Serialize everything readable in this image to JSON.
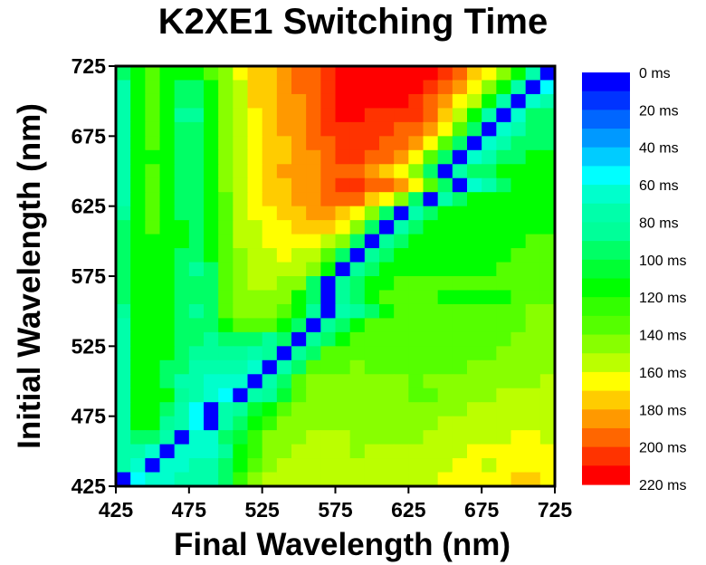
{
  "chart_data": {
    "type": "heatmap",
    "title": "K2XE1 Switching Time",
    "xlabel": "Final Wavelength (nm)",
    "ylabel": "Initial Wavelength (nm)",
    "xlim": [
      425,
      725
    ],
    "ylim": [
      425,
      725
    ],
    "x_ticks": [
      "425",
      "475",
      "525",
      "575",
      "625",
      "675",
      "725"
    ],
    "y_ticks": [
      "425",
      "475",
      "525",
      "575",
      "625",
      "675",
      "725"
    ],
    "x": [
      425,
      435,
      445,
      455,
      465,
      475,
      485,
      495,
      505,
      515,
      525,
      535,
      545,
      555,
      565,
      575,
      585,
      595,
      605,
      615,
      625,
      635,
      645,
      655,
      665,
      675,
      685,
      695,
      705,
      715,
      725
    ],
    "y_top_to_bottom": [
      725,
      715,
      705,
      695,
      685,
      675,
      665,
      655,
      645,
      635,
      625,
      615,
      605,
      595,
      585,
      575,
      565,
      555,
      545,
      535,
      525,
      515,
      505,
      495,
      485,
      475,
      465,
      455,
      445,
      435,
      425
    ],
    "value_unit": "ms",
    "colorbar": {
      "range": [
        0,
        220
      ],
      "step": 10,
      "labels": [
        "0 ms",
        "20 ms",
        "40 ms",
        "60 ms",
        "80 ms",
        "100 ms",
        "120 ms",
        "140 ms",
        "160 ms",
        "180 ms",
        "200 ms",
        "220 ms"
      ],
      "colors": [
        "#0000FF",
        "#0033FF",
        "#0066FF",
        "#0099FF",
        "#00CCFF",
        "#00FFFF",
        "#00FFCC",
        "#00FFAA",
        "#00FF99",
        "#00FF66",
        "#00FF33",
        "#00FF00",
        "#33FF00",
        "#55FF00",
        "#88FF00",
        "#BBFF00",
        "#FFFF00",
        "#FFCC00",
        "#FF9900",
        "#FF6600",
        "#FF3300",
        "#FF0000"
      ]
    },
    "values_ms": [
      [
        95,
        115,
        115,
        115,
        115,
        115,
        135,
        145,
        165,
        175,
        175,
        185,
        195,
        205,
        205,
        215,
        215,
        215,
        215,
        215,
        215,
        215,
        205,
        195,
        185,
        155,
        135,
        95,
        55,
        5,
        5
      ],
      [
        95,
        115,
        135,
        115,
        115,
        115,
        135,
        145,
        165,
        175,
        175,
        185,
        195,
        195,
        205,
        215,
        215,
        215,
        215,
        215,
        215,
        215,
        205,
        195,
        175,
        165,
        145,
        115,
        75,
        5,
        65
      ],
      [
        75,
        115,
        135,
        115,
        95,
        95,
        115,
        145,
        155,
        175,
        175,
        185,
        195,
        195,
        205,
        215,
        215,
        215,
        215,
        215,
        215,
        205,
        195,
        185,
        165,
        145,
        115,
        75,
        5,
        55,
        75
      ],
      [
        75,
        115,
        135,
        115,
        95,
        95,
        115,
        145,
        155,
        175,
        175,
        185,
        185,
        195,
        205,
        215,
        215,
        215,
        215,
        215,
        205,
        195,
        185,
        165,
        155,
        115,
        75,
        5,
        65,
        75,
        75
      ],
      [
        75,
        115,
        135,
        115,
        85,
        85,
        115,
        145,
        155,
        165,
        175,
        185,
        185,
        195,
        205,
        215,
        215,
        205,
        205,
        205,
        205,
        195,
        175,
        155,
        115,
        75,
        5,
        65,
        95,
        95,
        95
      ],
      [
        75,
        115,
        135,
        115,
        95,
        95,
        115,
        145,
        155,
        165,
        175,
        185,
        185,
        195,
        205,
        205,
        205,
        205,
        205,
        195,
        195,
        185,
        165,
        135,
        95,
        5,
        65,
        75,
        95,
        95,
        95
      ],
      [
        75,
        115,
        135,
        115,
        95,
        95,
        115,
        145,
        155,
        165,
        175,
        175,
        185,
        195,
        195,
        205,
        205,
        205,
        195,
        195,
        185,
        165,
        135,
        95,
        5,
        65,
        75,
        95,
        95,
        95,
        115
      ],
      [
        75,
        115,
        115,
        115,
        95,
        95,
        115,
        145,
        155,
        165,
        175,
        175,
        185,
        185,
        195,
        205,
        205,
        195,
        195,
        185,
        165,
        135,
        95,
        5,
        65,
        75,
        95,
        95,
        115,
        115,
        95
      ],
      [
        75,
        115,
        135,
        115,
        95,
        95,
        115,
        145,
        155,
        165,
        175,
        185,
        185,
        185,
        195,
        195,
        195,
        185,
        175,
        165,
        145,
        95,
        5,
        75,
        95,
        95,
        115,
        115,
        115,
        115,
        115
      ],
      [
        75,
        115,
        135,
        115,
        95,
        95,
        115,
        145,
        155,
        165,
        175,
        175,
        185,
        185,
        195,
        205,
        205,
        195,
        195,
        185,
        165,
        135,
        95,
        5,
        65,
        75,
        95,
        115,
        115,
        115,
        115
      ],
      [
        75,
        115,
        135,
        115,
        95,
        95,
        115,
        135,
        155,
        165,
        175,
        175,
        185,
        185,
        195,
        195,
        195,
        175,
        165,
        145,
        95,
        5,
        75,
        95,
        115,
        115,
        115,
        115,
        115,
        115,
        115
      ],
      [
        85,
        115,
        135,
        115,
        95,
        95,
        115,
        135,
        155,
        165,
        165,
        175,
        175,
        185,
        185,
        175,
        165,
        145,
        95,
        5,
        75,
        95,
        115,
        115,
        115,
        115,
        115,
        115,
        115,
        115,
        115
      ],
      [
        95,
        115,
        135,
        115,
        115,
        95,
        115,
        135,
        155,
        155,
        165,
        165,
        175,
        175,
        175,
        165,
        145,
        95,
        5,
        75,
        95,
        115,
        115,
        115,
        115,
        115,
        115,
        115,
        115,
        115,
        115
      ],
      [
        95,
        115,
        115,
        115,
        115,
        95,
        115,
        135,
        155,
        155,
        165,
        165,
        165,
        165,
        155,
        145,
        95,
        5,
        85,
        95,
        115,
        115,
        115,
        115,
        115,
        115,
        115,
        115,
        135,
        135,
        135
      ],
      [
        95,
        115,
        115,
        115,
        95,
        95,
        115,
        135,
        145,
        155,
        155,
        165,
        155,
        155,
        135,
        95,
        5,
        85,
        95,
        115,
        115,
        115,
        115,
        115,
        115,
        115,
        115,
        135,
        135,
        135,
        135
      ],
      [
        95,
        115,
        115,
        115,
        95,
        85,
        95,
        135,
        145,
        155,
        155,
        155,
        155,
        145,
        115,
        5,
        85,
        95,
        115,
        115,
        115,
        115,
        115,
        115,
        115,
        115,
        135,
        135,
        135,
        135,
        135
      ],
      [
        95,
        115,
        115,
        115,
        95,
        95,
        95,
        135,
        145,
        155,
        155,
        145,
        145,
        95,
        5,
        85,
        95,
        115,
        115,
        135,
        135,
        135,
        135,
        135,
        135,
        135,
        135,
        135,
        135,
        135,
        135
      ],
      [
        95,
        115,
        115,
        115,
        95,
        95,
        95,
        135,
        145,
        145,
        145,
        145,
        115,
        95,
        5,
        85,
        95,
        115,
        135,
        135,
        135,
        135,
        115,
        115,
        115,
        115,
        115,
        135,
        135,
        135,
        135
      ],
      [
        85,
        115,
        115,
        115,
        95,
        85,
        95,
        135,
        145,
        145,
        145,
        135,
        115,
        85,
        5,
        75,
        85,
        95,
        115,
        135,
        135,
        135,
        135,
        135,
        135,
        135,
        135,
        135,
        145,
        145,
        145
      ],
      [
        75,
        115,
        115,
        115,
        95,
        95,
        95,
        115,
        135,
        135,
        135,
        115,
        95,
        5,
        85,
        95,
        115,
        135,
        135,
        135,
        135,
        135,
        135,
        135,
        135,
        135,
        135,
        135,
        145,
        145,
        145
      ],
      [
        75,
        115,
        115,
        115,
        95,
        95,
        85,
        95,
        95,
        95,
        85,
        95,
        5,
        85,
        95,
        115,
        135,
        135,
        135,
        135,
        135,
        135,
        135,
        135,
        135,
        135,
        135,
        145,
        145,
        145,
        145
      ],
      [
        75,
        115,
        115,
        115,
        95,
        85,
        85,
        85,
        85,
        75,
        85,
        5,
        85,
        95,
        135,
        135,
        135,
        135,
        135,
        135,
        135,
        135,
        135,
        135,
        135,
        135,
        145,
        145,
        145,
        145,
        145
      ],
      [
        75,
        115,
        115,
        95,
        95,
        75,
        75,
        75,
        75,
        65,
        5,
        75,
        95,
        135,
        135,
        135,
        145,
        135,
        135,
        135,
        135,
        135,
        135,
        135,
        145,
        145,
        145,
        145,
        145,
        145,
        145
      ],
      [
        75,
        115,
        115,
        95,
        75,
        75,
        65,
        65,
        65,
        5,
        75,
        95,
        135,
        145,
        145,
        145,
        145,
        145,
        145,
        145,
        135,
        145,
        145,
        145,
        145,
        145,
        145,
        145,
        145,
        155,
        145
      ],
      [
        75,
        115,
        115,
        115,
        85,
        75,
        65,
        55,
        5,
        75,
        85,
        105,
        135,
        145,
        145,
        145,
        145,
        145,
        145,
        145,
        135,
        135,
        145,
        145,
        145,
        145,
        155,
        155,
        155,
        155,
        145
      ],
      [
        75,
        115,
        115,
        95,
        75,
        55,
        5,
        75,
        85,
        105,
        115,
        135,
        145,
        145,
        145,
        145,
        145,
        145,
        145,
        145,
        145,
        145,
        145,
        145,
        155,
        155,
        155,
        155,
        155,
        155,
        155
      ],
      [
        75,
        115,
        115,
        85,
        75,
        55,
        5,
        75,
        95,
        115,
        125,
        145,
        145,
        145,
        145,
        145,
        145,
        145,
        145,
        145,
        145,
        145,
        155,
        155,
        155,
        155,
        155,
        155,
        155,
        155,
        155
      ],
      [
        75,
        95,
        95,
        75,
        5,
        65,
        65,
        95,
        105,
        125,
        145,
        145,
        145,
        155,
        155,
        155,
        145,
        145,
        145,
        145,
        145,
        155,
        155,
        155,
        155,
        155,
        155,
        165,
        165,
        155,
        155
      ],
      [
        75,
        75,
        65,
        5,
        65,
        65,
        65,
        85,
        115,
        125,
        145,
        145,
        155,
        155,
        155,
        155,
        145,
        155,
        155,
        155,
        155,
        155,
        155,
        155,
        165,
        165,
        165,
        165,
        165,
        165,
        155
      ],
      [
        75,
        65,
        5,
        65,
        65,
        75,
        75,
        95,
        115,
        135,
        145,
        155,
        155,
        155,
        155,
        155,
        155,
        155,
        155,
        155,
        155,
        155,
        155,
        165,
        165,
        155,
        165,
        165,
        165,
        165,
        155
      ],
      [
        5,
        55,
        65,
        65,
        75,
        75,
        75,
        95,
        125,
        145,
        155,
        155,
        155,
        155,
        155,
        155,
        155,
        155,
        155,
        155,
        155,
        155,
        165,
        165,
        165,
        165,
        165,
        175,
        175,
        165,
        165
      ]
    ]
  }
}
